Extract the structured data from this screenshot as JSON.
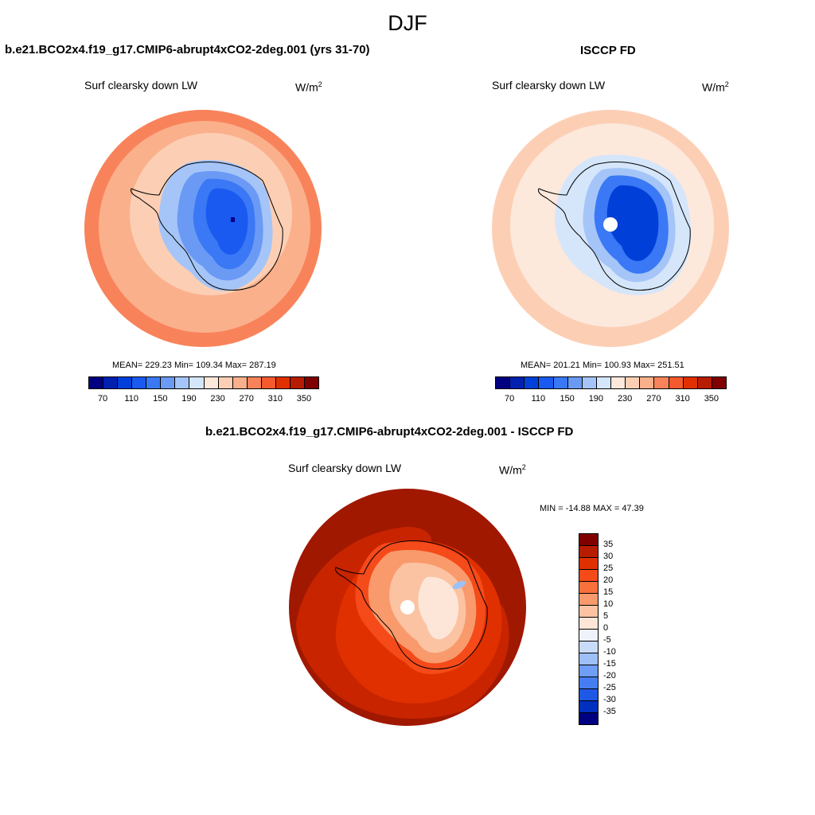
{
  "figure_title": "DJF",
  "panels": [
    {
      "title": "b.e21.BCO2x4.f19_g17.CMIP6-abrupt4xCO2-2deg.001 (yrs 31-70)",
      "variable": "Surf clearsky down LW",
      "units_base": "W/m",
      "units_exp": "2",
      "stats": "MEAN= 229.23  Min= 109.34  Max= 287.19",
      "colorbar": {
        "colors": [
          "#000080",
          "#0020b0",
          "#0040d8",
          "#1a5af0",
          "#3a78f5",
          "#6b9af5",
          "#a5c5f8",
          "#d5e6fb",
          "#fde8dc",
          "#fccfb5",
          "#fbb08c",
          "#f8835a",
          "#f55a2e",
          "#e03000",
          "#b81c00",
          "#800000"
        ],
        "labels": [
          "70",
          "110",
          "150",
          "190",
          "230",
          "270",
          "310",
          "350"
        ]
      }
    },
    {
      "title": "ISCCP FD",
      "variable": "Surf clearsky down LW",
      "units_base": "W/m",
      "units_exp": "2",
      "stats": "MEAN= 201.21  Min= 100.93  Max= 251.51",
      "colorbar": {
        "colors": [
          "#000080",
          "#0020b0",
          "#0040d8",
          "#1a5af0",
          "#3a78f5",
          "#6b9af5",
          "#a5c5f8",
          "#d5e6fb",
          "#fde8dc",
          "#fccfb5",
          "#fbb08c",
          "#f8835a",
          "#f55a2e",
          "#e03000",
          "#b81c00",
          "#800000"
        ],
        "labels": [
          "70",
          "110",
          "150",
          "190",
          "230",
          "270",
          "310",
          "350"
        ]
      }
    },
    {
      "title": "b.e21.BCO2x4.f19_g17.CMIP6-abrupt4xCO2-2deg.001 - ISCCP FD",
      "variable": "Surf clearsky down LW",
      "units_base": "W/m",
      "units_exp": "2",
      "stats": "MIN = -14.88 MAX =  47.39",
      "colorbar": {
        "colors": [
          "#800000",
          "#b81c00",
          "#e03000",
          "#f54a1a",
          "#f8703c",
          "#f99a6c",
          "#fbc3a2",
          "#fde6d8",
          "#eef3fb",
          "#c8dcfa",
          "#9ec0f8",
          "#6f9ef5",
          "#467ef2",
          "#2058e6",
          "#0030c0",
          "#000080"
        ],
        "labels": [
          "35",
          "30",
          "25",
          "20",
          "15",
          "10",
          "5",
          "0",
          "-5",
          "-10",
          "-15",
          "-20",
          "-25",
          "-30",
          "-35"
        ]
      }
    }
  ],
  "colors": {
    "ocean_warm": "#f8835a",
    "ring_mid": "#fbb08c",
    "ring_inner": "#fccfb5",
    "antarctic_blue": "#3a78f5",
    "diff_dark": "#a01800",
    "diff_mid": "#e03000"
  }
}
